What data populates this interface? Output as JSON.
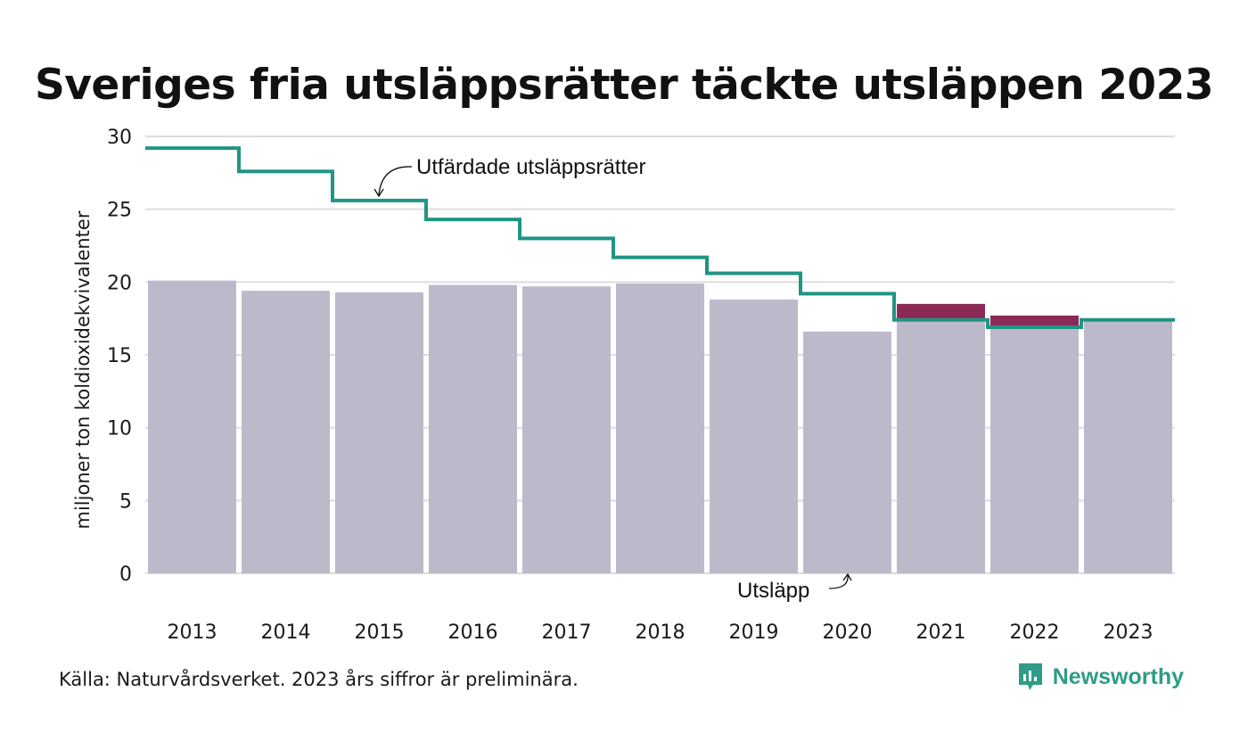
{
  "title": "Sveriges fria utsläppsrätter täckte utsläppen 2023",
  "source": "Källa: Naturvårdsverket. 2023 års siffror är preliminära.",
  "brand": {
    "name": "Newsworthy",
    "icon": "newsworthy-logo-icon"
  },
  "colors": {
    "bars": "#bcbaca",
    "excess": "#8b2a54",
    "line": "#1f9583",
    "grid": "#dddddd"
  },
  "chart_data": {
    "type": "bar",
    "title": "Sveriges fria utsläppsrätter täckte utsläppen 2023",
    "ylabel": "miljoner ton koldioxidekvivalenter",
    "xlabel": "",
    "ylim": [
      0,
      30
    ],
    "yticks": [
      0,
      5,
      10,
      15,
      20,
      25,
      30
    ],
    "grid": true,
    "categories": [
      "2013",
      "2014",
      "2015",
      "2016",
      "2017",
      "2018",
      "2019",
      "2020",
      "2021",
      "2022",
      "2023"
    ],
    "series": [
      {
        "name": "Utsläpp",
        "type": "bar",
        "values": [
          20.1,
          19.4,
          19.3,
          19.8,
          19.7,
          19.9,
          18.8,
          16.6,
          18.5,
          17.7,
          17.3
        ]
      },
      {
        "name": "Utfärdade utsläppsrätter",
        "type": "step-line",
        "values": [
          29.2,
          27.6,
          25.6,
          24.3,
          23.0,
          21.7,
          20.6,
          19.2,
          17.4,
          16.9,
          17.4
        ]
      }
    ],
    "annotations": [
      "Utfärdade utsläppsrätter",
      "Utsläpp"
    ]
  }
}
